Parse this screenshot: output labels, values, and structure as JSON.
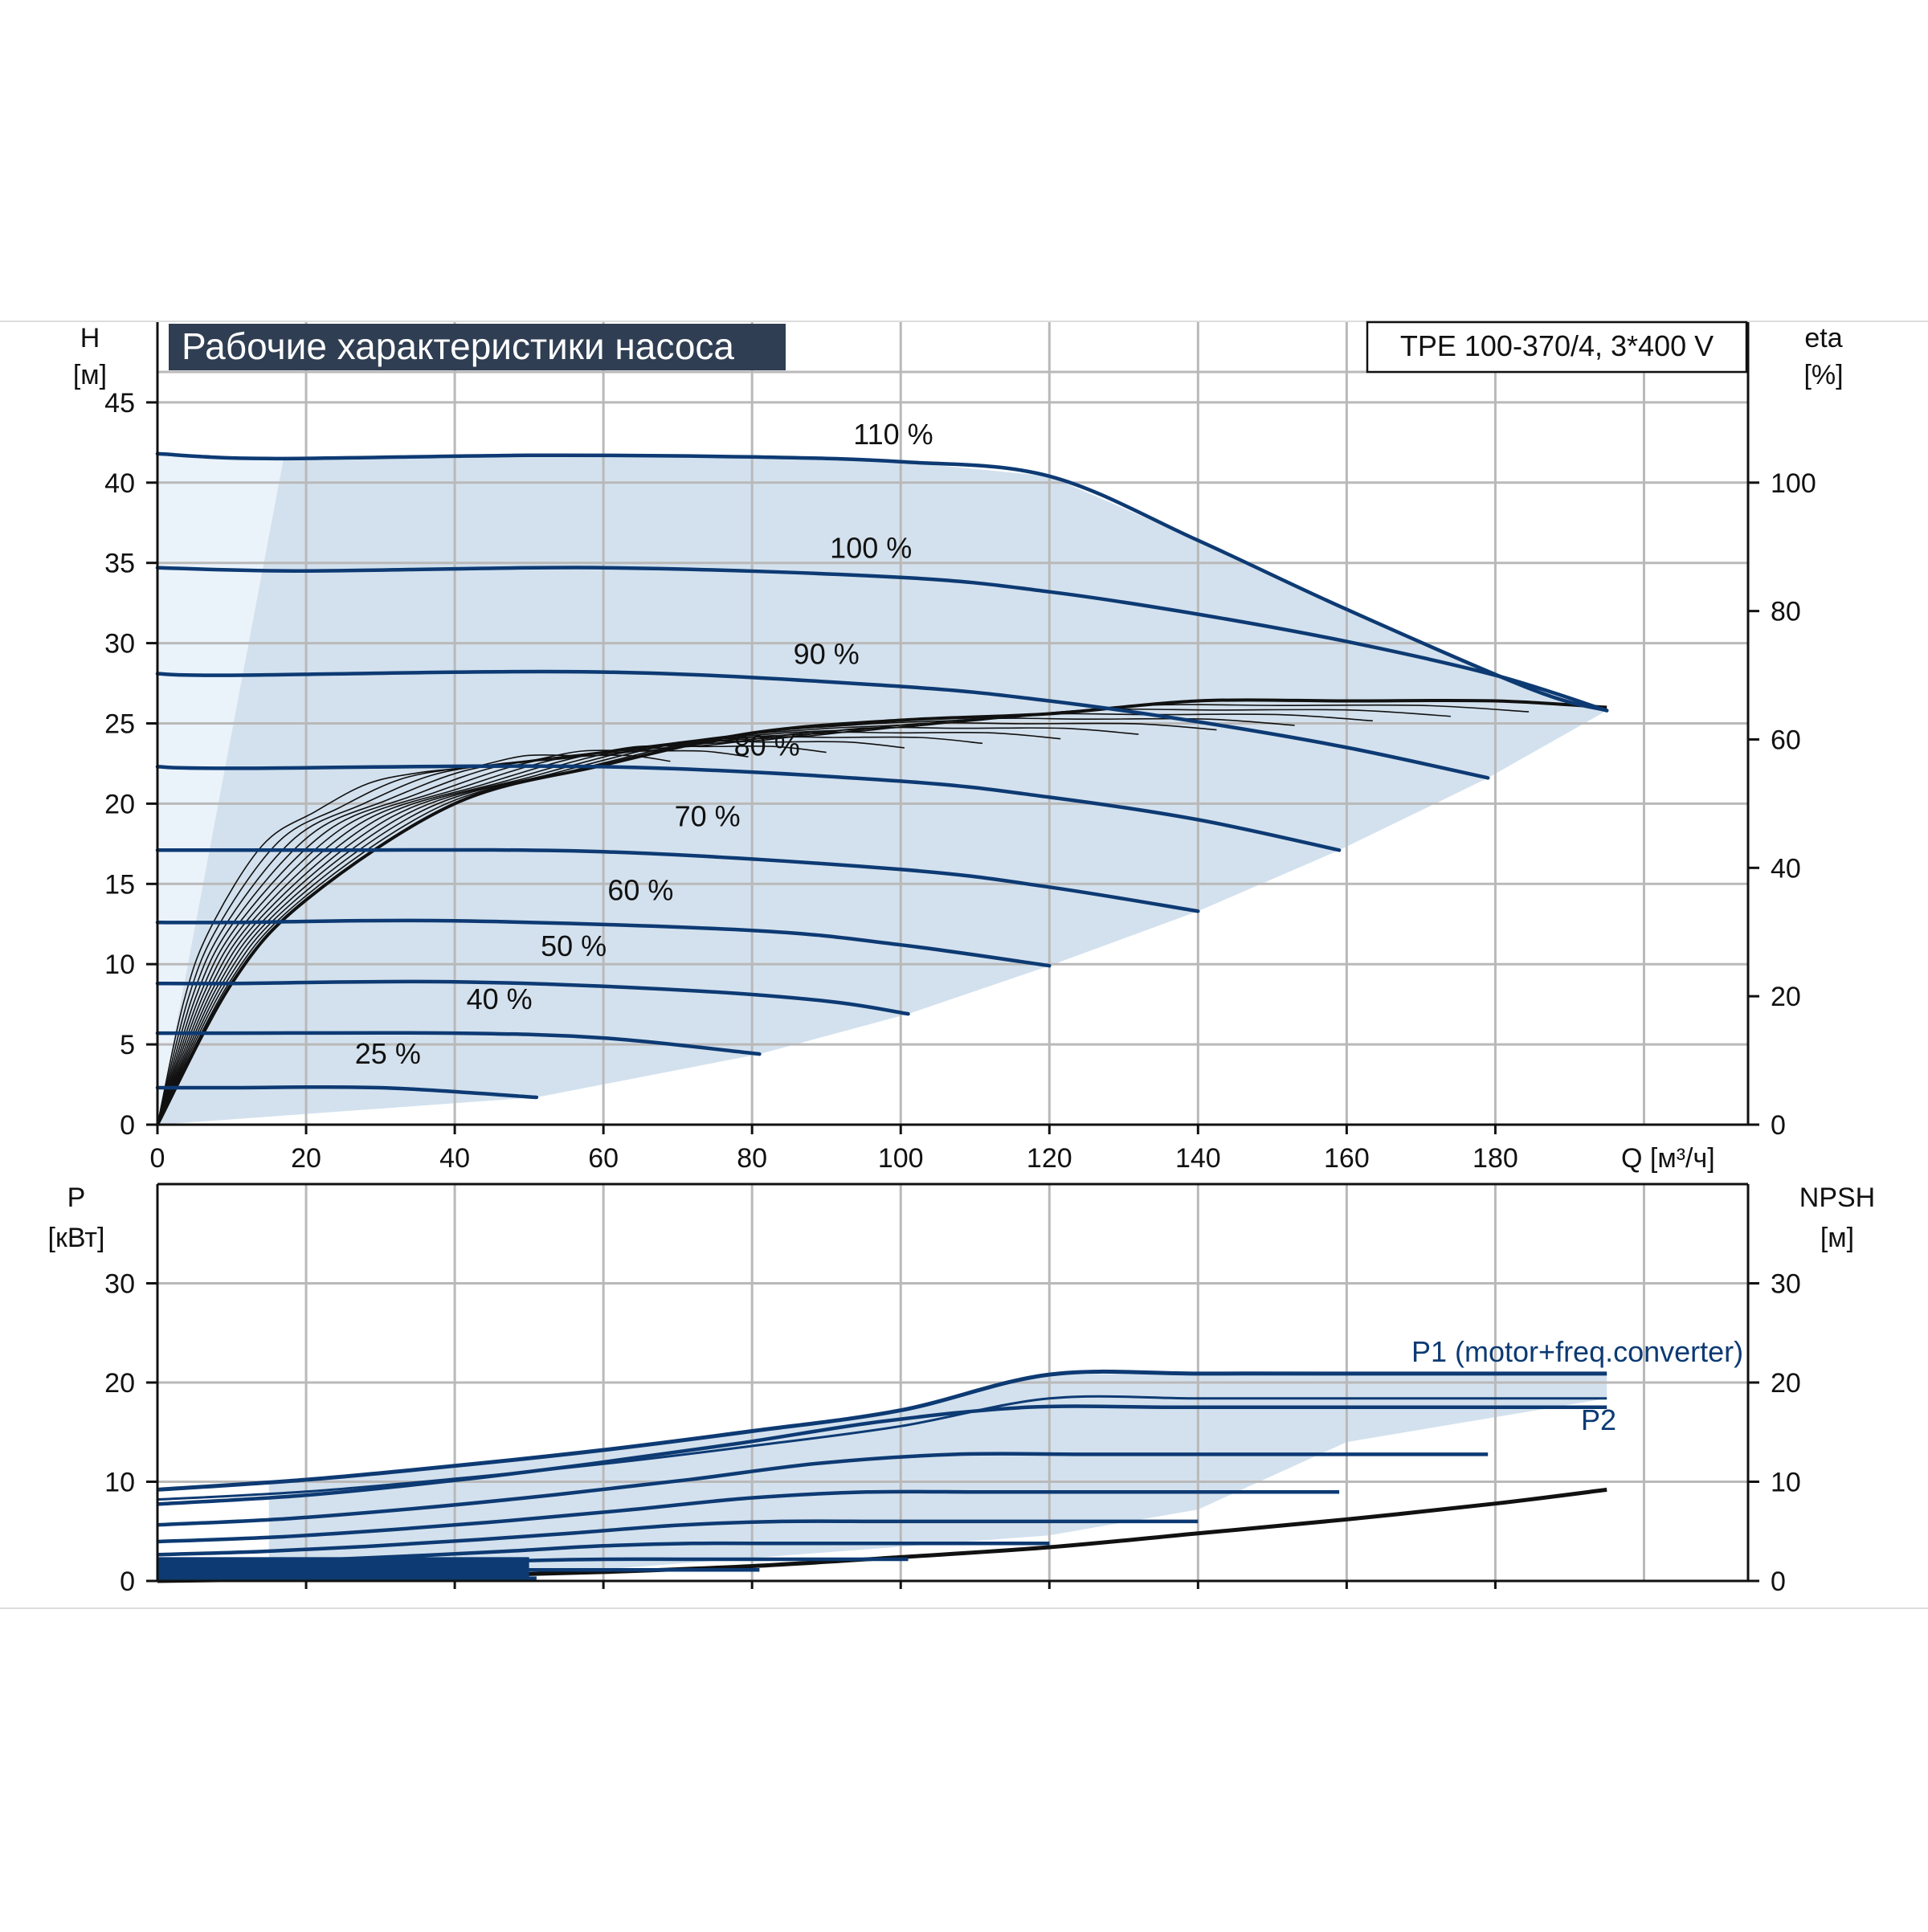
{
  "colors": {
    "curve": "#0d3a73",
    "band": "#d3e1ee",
    "band_light": "#eaf2fa",
    "grid": "#b9b9b9",
    "axis": "#111111",
    "title_bg": "#2f3e52",
    "efficiency": "#111111"
  },
  "chart_data": [
    {
      "type": "line",
      "title": "Рабочие характеристики насоса",
      "model": "TPE 100-370/4, 3*400 V",
      "ylabel": "H",
      "yunit": "[м]",
      "y2label": "eta",
      "y2unit": "[%]",
      "xlabel": "Q [м³/ч]",
      "xlim": [
        0,
        214
      ],
      "ylim": [
        0,
        50
      ],
      "y2lim": [
        0,
        125
      ],
      "x_ticks": [
        "0",
        "20",
        "40",
        "60",
        "80",
        "100",
        "120",
        "140",
        "160",
        "180"
      ],
      "y_ticks": [
        "0",
        "5",
        "10",
        "15",
        "20",
        "25",
        "30",
        "35",
        "40",
        "45"
      ],
      "y2_ticks": [
        "0",
        "20",
        "40",
        "60",
        "80",
        "100"
      ],
      "grid": true,
      "series": [
        {
          "name": "110 %",
          "label_at": [
            99,
            42.4
          ],
          "x": [
            0,
            15,
            50,
            80,
            100,
            120,
            140,
            160,
            185,
            195
          ],
          "y": [
            41.8,
            41.5,
            41.7,
            41.6,
            41.3,
            40.4,
            36.4,
            32.1,
            27.1,
            25.8
          ]
        },
        {
          "name": "100 %",
          "label_at": [
            96,
            35.3
          ],
          "x": [
            0,
            20,
            60,
            100,
            120,
            140,
            160,
            180,
            195
          ],
          "y": [
            34.7,
            34.5,
            34.7,
            34.1,
            33.2,
            31.8,
            30.1,
            28.0,
            25.8
          ]
        },
        {
          "name": "90 %",
          "label_at": [
            90,
            28.7
          ],
          "x": [
            0,
            10,
            60,
            100,
            120,
            140,
            160,
            179
          ],
          "y": [
            28.1,
            28.0,
            28.2,
            27.3,
            26.4,
            25.1,
            23.5,
            21.6
          ]
        },
        {
          "name": "80 %",
          "label_at": [
            82,
            23.0
          ],
          "x": [
            0,
            10,
            60,
            100,
            120,
            140,
            159
          ],
          "y": [
            22.3,
            22.2,
            22.3,
            21.4,
            20.4,
            19.0,
            17.1
          ]
        },
        {
          "name": "70 %",
          "label_at": [
            74,
            18.6
          ],
          "x": [
            0,
            20,
            60,
            100,
            120,
            140
          ],
          "y": [
            17.1,
            17.1,
            17.0,
            15.9,
            14.8,
            13.3
          ]
        },
        {
          "name": "60 %",
          "label_at": [
            65,
            14.0
          ],
          "x": [
            0,
            10,
            40,
            80,
            100,
            120
          ],
          "y": [
            12.6,
            12.6,
            12.7,
            12.1,
            11.2,
            9.9
          ]
        },
        {
          "name": "50 %",
          "label_at": [
            56,
            10.5
          ],
          "x": [
            0,
            10,
            40,
            70,
            90,
            101
          ],
          "y": [
            8.8,
            8.8,
            8.9,
            8.4,
            7.7,
            6.9
          ]
        },
        {
          "name": "40 %",
          "label_at": [
            46,
            7.2
          ],
          "x": [
            0,
            10,
            40,
            60,
            81
          ],
          "y": [
            5.7,
            5.7,
            5.7,
            5.4,
            4.4
          ]
        },
        {
          "name": "25 %",
          "label_at": [
            31,
            3.8
          ],
          "x": [
            0,
            10,
            30,
            51
          ],
          "y": [
            2.3,
            2.3,
            2.3,
            1.7
          ]
        },
        {
          "name": "eta",
          "axis": "y2",
          "x": [
            0,
            10,
            20,
            40,
            60,
            80,
            100,
            120,
            140,
            160,
            180,
            195
          ],
          "y": [
            0,
            22,
            35,
            50,
            56,
            61,
            63,
            64,
            66,
            66,
            66,
            65
          ]
        }
      ]
    },
    {
      "type": "line",
      "ylabel": "P",
      "yunit": "[кВт]",
      "y2label": "NPSH",
      "y2unit": "[м]",
      "xlim": [
        0,
        214
      ],
      "ylim": [
        0,
        40
      ],
      "y2lim": [
        0,
        40
      ],
      "y_ticks": [
        "0",
        "10",
        "20",
        "30"
      ],
      "y2_ticks": [
        "0",
        "10",
        "20",
        "30"
      ],
      "grid": true,
      "labels": {
        "p1": "P1 (motor+freq.converter)",
        "p2": "P2"
      },
      "series": [
        {
          "name": "P1 (motor+freq.converter)",
          "x": [
            0,
            20,
            40,
            60,
            80,
            100,
            120,
            140,
            160,
            180,
            195
          ],
          "y": [
            9.2,
            10.2,
            11.6,
            13.2,
            15.1,
            17.2,
            20.8,
            20.9,
            20.9,
            20.9,
            20.9
          ]
        },
        {
          "name": "P2",
          "x": [
            0,
            20,
            40,
            60,
            80,
            100,
            120,
            140,
            160,
            180,
            195
          ],
          "y": [
            8.2,
            9.0,
            10.3,
            11.8,
            13.6,
            15.6,
            18.4,
            18.4,
            18.4,
            18.4,
            18.4
          ]
        },
        {
          "name": "NPSH",
          "axis": "y2",
          "x": [
            0,
            20,
            40,
            60,
            80,
            100,
            120,
            140,
            160,
            180,
            195
          ],
          "y": [
            0.0,
            0.2,
            0.5,
            0.9,
            1.5,
            2.4,
            3.4,
            4.8,
            6.2,
            7.8,
            9.2
          ]
        }
      ]
    }
  ]
}
